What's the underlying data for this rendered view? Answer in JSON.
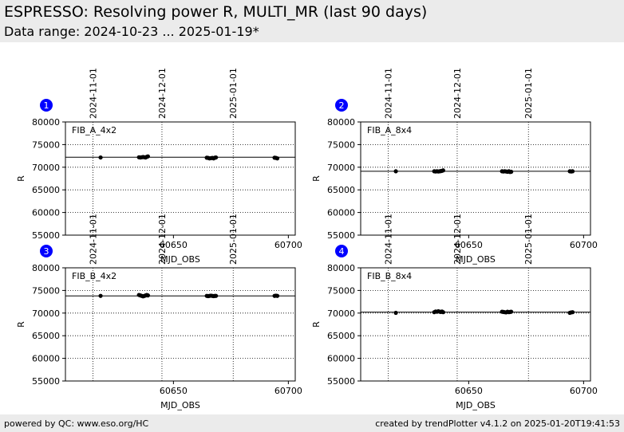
{
  "header": {
    "title": "ESPRESSO: Resolving power R, MULTI_MR (last 90 days)",
    "subtitle": "Data range: 2024-10-23 ... 2025-01-19*"
  },
  "footer": {
    "left": "powered by QC: www.eso.org/HC",
    "right": "created by trendPlotter v4.1.2 on 2025-01-20T19:41:53"
  },
  "colors": {
    "badge": "#0000ff",
    "points": "#000000",
    "band": "#ebebeb"
  },
  "chart_data": [
    {
      "type": "scatter",
      "panel_number": "1",
      "label": "FIB_A_4x2",
      "xlabel": "MJD_OBS",
      "ylabel": "R",
      "xlim": [
        60603,
        60703
      ],
      "ylim": [
        55000,
        80000
      ],
      "xticks": [
        60650,
        60700
      ],
      "xtick_labels": [
        "60650",
        "60700"
      ],
      "yticks": [
        55000,
        60000,
        65000,
        70000,
        75000,
        80000
      ],
      "ytick_labels": [
        "55000",
        "60000",
        "65000",
        "70000",
        "75000",
        "80000"
      ],
      "reference_line": 72200,
      "date_markers": [
        {
          "mdj": 60615,
          "label": "2024-11-01"
        },
        {
          "mdj": 60645,
          "label": "2024-12-01"
        },
        {
          "mdj": 60676,
          "label": "2025-01-01"
        }
      ],
      "points": [
        [
          60618.3,
          72150
        ],
        [
          60635.0,
          72200
        ],
        [
          60635.6,
          72150
        ],
        [
          60636.2,
          72200
        ],
        [
          60636.8,
          72250
        ],
        [
          60637.4,
          72200
        ],
        [
          60637.9,
          72150
        ],
        [
          60638.4,
          72300
        ],
        [
          60638.9,
          72400
        ],
        [
          60664.5,
          72100
        ],
        [
          60665.1,
          72050
        ],
        [
          60665.7,
          71950
        ],
        [
          60666.3,
          72000
        ],
        [
          60666.9,
          72050
        ],
        [
          60667.5,
          71950
        ],
        [
          60668.0,
          72100
        ],
        [
          60668.5,
          72150
        ],
        [
          60694.0,
          72100
        ],
        [
          60694.6,
          72050
        ],
        [
          60695.2,
          71950
        ]
      ]
    },
    {
      "type": "scatter",
      "panel_number": "2",
      "label": "FIB_A_8x4",
      "xlabel": "MJD_OBS",
      "ylabel": "R",
      "xlim": [
        60603,
        60703
      ],
      "ylim": [
        55000,
        80000
      ],
      "xticks": [
        60650,
        60700
      ],
      "xtick_labels": [
        "60650",
        "60700"
      ],
      "yticks": [
        55000,
        60000,
        65000,
        70000,
        75000,
        80000
      ],
      "ytick_labels": [
        "55000",
        "60000",
        "65000",
        "70000",
        "75000",
        "80000"
      ],
      "reference_line": 69100,
      "date_markers": [
        {
          "mdj": 60615,
          "label": "2024-11-01"
        },
        {
          "mdj": 60645,
          "label": "2024-12-01"
        },
        {
          "mdj": 60676,
          "label": "2025-01-01"
        }
      ],
      "points": [
        [
          60618.3,
          69100
        ],
        [
          60635.0,
          69100
        ],
        [
          60635.6,
          69050
        ],
        [
          60636.2,
          69100
        ],
        [
          60636.8,
          69050
        ],
        [
          60637.4,
          69100
        ],
        [
          60637.9,
          69150
        ],
        [
          60638.4,
          69200
        ],
        [
          60638.9,
          69300
        ],
        [
          60664.5,
          69100
        ],
        [
          60665.1,
          69050
        ],
        [
          60665.7,
          69100
        ],
        [
          60666.3,
          69050
        ],
        [
          60666.9,
          69000
        ],
        [
          60667.5,
          69100
        ],
        [
          60668.0,
          68950
        ],
        [
          60668.5,
          69000
        ],
        [
          60694.0,
          69100
        ],
        [
          60694.6,
          69050
        ],
        [
          60695.2,
          69100
        ]
      ]
    },
    {
      "type": "scatter",
      "panel_number": "3",
      "label": "FIB_B_4x2",
      "xlabel": "MJD_OBS",
      "ylabel": "R",
      "xlim": [
        60603,
        60703
      ],
      "ylim": [
        55000,
        80000
      ],
      "xticks": [
        60650,
        60700
      ],
      "xtick_labels": [
        "60650",
        "60700"
      ],
      "yticks": [
        55000,
        60000,
        65000,
        70000,
        75000,
        80000
      ],
      "ytick_labels": [
        "55000",
        "60000",
        "65000",
        "70000",
        "75000",
        "80000"
      ],
      "reference_line": 73800,
      "date_markers": [
        {
          "mdj": 60615,
          "label": "2024-11-01"
        },
        {
          "mdj": 60645,
          "label": "2024-12-01"
        },
        {
          "mdj": 60676,
          "label": "2025-01-01"
        }
      ],
      "points": [
        [
          60618.3,
          73800
        ],
        [
          60635.0,
          74000
        ],
        [
          60635.6,
          73900
        ],
        [
          60636.2,
          73800
        ],
        [
          60636.8,
          73700
        ],
        [
          60637.4,
          73800
        ],
        [
          60637.9,
          73900
        ],
        [
          60638.4,
          74000
        ],
        [
          60638.9,
          73900
        ],
        [
          60664.5,
          73800
        ],
        [
          60665.1,
          73750
        ],
        [
          60665.7,
          73800
        ],
        [
          60666.3,
          73850
        ],
        [
          60666.9,
          73800
        ],
        [
          60667.5,
          73750
        ],
        [
          60668.0,
          73800
        ],
        [
          60668.5,
          73800
        ],
        [
          60694.0,
          73800
        ],
        [
          60694.6,
          73850
        ],
        [
          60695.2,
          73800
        ]
      ]
    },
    {
      "type": "scatter",
      "panel_number": "4",
      "label": "FIB_B_8x4",
      "xlabel": "MJD_OBS",
      "ylabel": "R",
      "xlim": [
        60603,
        60703
      ],
      "ylim": [
        55000,
        80000
      ],
      "xticks": [
        60650,
        60700
      ],
      "xtick_labels": [
        "60650",
        "60700"
      ],
      "yticks": [
        55000,
        60000,
        65000,
        70000,
        75000,
        80000
      ],
      "ytick_labels": [
        "55000",
        "60000",
        "65000",
        "70000",
        "75000",
        "80000"
      ],
      "reference_line": 70200,
      "date_markers": [
        {
          "mdj": 60615,
          "label": "2024-11-01"
        },
        {
          "mdj": 60645,
          "label": "2024-12-01"
        },
        {
          "mdj": 60676,
          "label": "2025-01-01"
        }
      ],
      "points": [
        [
          60618.3,
          70050
        ],
        [
          60635.0,
          70200
        ],
        [
          60635.6,
          70350
        ],
        [
          60636.2,
          70300
        ],
        [
          60636.8,
          70400
        ],
        [
          60637.4,
          70300
        ],
        [
          60637.9,
          70250
        ],
        [
          60638.4,
          70350
        ],
        [
          60638.9,
          70200
        ],
        [
          60664.5,
          70300
        ],
        [
          60665.1,
          70250
        ],
        [
          60665.7,
          70200
        ],
        [
          60666.3,
          70150
        ],
        [
          60666.9,
          70300
        ],
        [
          60667.5,
          70200
        ],
        [
          60668.0,
          70250
        ],
        [
          60668.5,
          70300
        ],
        [
          60694.0,
          70050
        ],
        [
          60694.6,
          70150
        ],
        [
          60695.2,
          70200
        ]
      ]
    }
  ]
}
